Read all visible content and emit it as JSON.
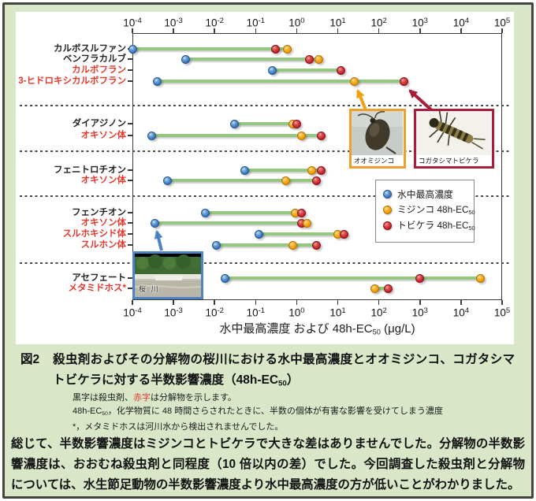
{
  "colors": {
    "page_background": "#d9e6c7",
    "water_dot": "#3b78be",
    "mijinko_dot": "#f09c00",
    "tobikera_dot": "#c9232b",
    "connector_line": "#93c87e",
    "degradation_label_red": "#e8372c",
    "mijinko_box_border": "#eda12c",
    "tobikera_box_border": "#ab1c3c",
    "river_box_border": "#4d83c4"
  },
  "chart_data": {
    "type": "scatter",
    "x_scale": "log",
    "x_tick_exponents": [
      -4,
      -3,
      -2,
      -1,
      0,
      1,
      2,
      3,
      4,
      5
    ],
    "xlim": [
      0.0001,
      100000
    ],
    "xlabel": "水中最高濃度 および 48h-EC50 (μg/L)",
    "legend_position": "right-middle",
    "legend": [
      {
        "key": "water",
        "label": "水中最高濃度",
        "color": "#3b78be"
      },
      {
        "key": "mijinko",
        "label": "ミジンコ 48h-EC50",
        "color": "#f09c00"
      },
      {
        "key": "tobikera",
        "label": "トビケラ 48h-EC50",
        "color": "#c9232b"
      }
    ],
    "groups": [
      {
        "rows": [
          {
            "label": "カルボスルファン",
            "type": "insecticide",
            "points": [
              {
                "series": "water",
                "value": 0.0001
              },
              {
                "series": "tobikera",
                "value": 0.3
              },
              {
                "series": "mijinko",
                "value": 0.6
              }
            ]
          },
          {
            "label": "ベンフラカルブ",
            "type": "insecticide",
            "points": [
              {
                "series": "water",
                "value": 0.002
              },
              {
                "series": "tobikera",
                "value": 2
              },
              {
                "series": "mijinko",
                "value": 3.5
              }
            ]
          },
          {
            "label": "カルボフラン",
            "type": "degradation",
            "points": [
              {
                "series": "water",
                "value": 0.25
              },
              {
                "series": "tobikera",
                "value": 12
              }
            ]
          },
          {
            "label": "3-ヒドロキシカルボフラン",
            "type": "degradation",
            "points": [
              {
                "series": "water",
                "value": 0.0004
              },
              {
                "series": "mijinko",
                "value": 25
              },
              {
                "series": "tobikera",
                "value": 400
              }
            ]
          }
        ]
      },
      {
        "rows": [
          {
            "label": "ダイアジノン",
            "type": "insecticide",
            "points": [
              {
                "series": "water",
                "value": 0.03
              },
              {
                "series": "mijinko",
                "value": 0.8
              },
              {
                "series": "tobikera",
                "value": 1.0
              }
            ]
          },
          {
            "label": "オキソン体",
            "type": "degradation",
            "points": [
              {
                "series": "water",
                "value": 0.0003
              },
              {
                "series": "mijinko",
                "value": 1.3
              },
              {
                "series": "tobikera",
                "value": 4
              }
            ]
          }
        ]
      },
      {
        "rows": [
          {
            "label": "フェニトロチオン",
            "type": "insecticide",
            "points": [
              {
                "series": "water",
                "value": 0.055
              },
              {
                "series": "mijinko",
                "value": 2.3
              },
              {
                "series": "tobikera",
                "value": 4
              }
            ]
          },
          {
            "label": "オキソン体",
            "type": "degradation",
            "points": [
              {
                "series": "water",
                "value": 0.0007
              },
              {
                "series": "mijinko",
                "value": 0.55
              },
              {
                "series": "tobikera",
                "value": 3
              }
            ]
          }
        ]
      },
      {
        "rows": [
          {
            "label": "フェンチオン",
            "type": "insecticide",
            "points": [
              {
                "series": "water",
                "value": 0.006
              },
              {
                "series": "mijinko",
                "value": 0.9
              },
              {
                "series": "tobikera",
                "value": 1.3
              }
            ]
          },
          {
            "label": "オキソン体",
            "type": "degradation",
            "points": [
              {
                "series": "water",
                "value": 0.00035
              },
              {
                "series": "tobikera",
                "value": 1.3
              },
              {
                "series": "mijinko",
                "value": 1.8
              }
            ]
          },
          {
            "label": "スルホキシド体",
            "type": "degradation",
            "points": [
              {
                "series": "water",
                "value": 0.12
              },
              {
                "series": "mijinko",
                "value": 10
              },
              {
                "series": "tobikera",
                "value": 14
              }
            ]
          },
          {
            "label": "スルホン体",
            "type": "degradation",
            "points": [
              {
                "series": "water",
                "value": 0.011
              },
              {
                "series": "mijinko",
                "value": 0.8
              },
              {
                "series": "tobikera",
                "value": 3
              }
            ]
          }
        ]
      },
      {
        "rows": [
          {
            "label": "アセフェート",
            "type": "insecticide",
            "points": [
              {
                "series": "water",
                "value": 0.018
              },
              {
                "series": "tobikera",
                "value": 1000
              },
              {
                "series": "mijinko",
                "value": 30000
              }
            ]
          },
          {
            "label": "メタミドホス*",
            "type": "degradation",
            "points": [
              {
                "series": "mijinko",
                "value": 80
              },
              {
                "series": "tobikera",
                "value": 170
              }
            ]
          }
        ]
      }
    ],
    "insets": {
      "mijinko": {
        "label": "オオミジンコ",
        "points_to": {
          "row": "3-ヒドロキシカルボフラン",
          "series": "mijinko"
        }
      },
      "tobikera": {
        "label": "コガタシマトビケラ",
        "points_to": {
          "row": "3-ヒドロキシカルボフラン",
          "series": "tobikera"
        }
      },
      "river": {
        "label": "桜 川",
        "points_to": {
          "row": "オキソン体(フェンチオン)",
          "series": "water"
        }
      }
    }
  },
  "caption": {
    "figure_label": "図2",
    "title": "殺虫剤およびその分解物の桜川における水中最高濃度とオオミジンコ、コガタシマトビケラに対する半数影響濃度（48h-EC50）"
  },
  "notes": {
    "note1_pre": "黒字は殺虫剤、",
    "note1_red": "赤字",
    "note1_post": "は分解物を示します。",
    "note2": "48h-EC50，化学物質に 48 時間さらされたときに、半数の個体が有害な影響を受けてしまう濃度",
    "note3": "*，メタミドホスは河川水から検出されませんでした。"
  },
  "summary": "総じて、半数影響濃度はミジンコとトビケラで大きな差はありませんでした。分解物の半数影響濃度は、おおむね殺虫剤と同程度（10 倍以内の差）でした。今回調査した殺虫剤と分解物については、水生節足動物の半数影響濃度より水中最高濃度の方が低いことがわかりました。"
}
